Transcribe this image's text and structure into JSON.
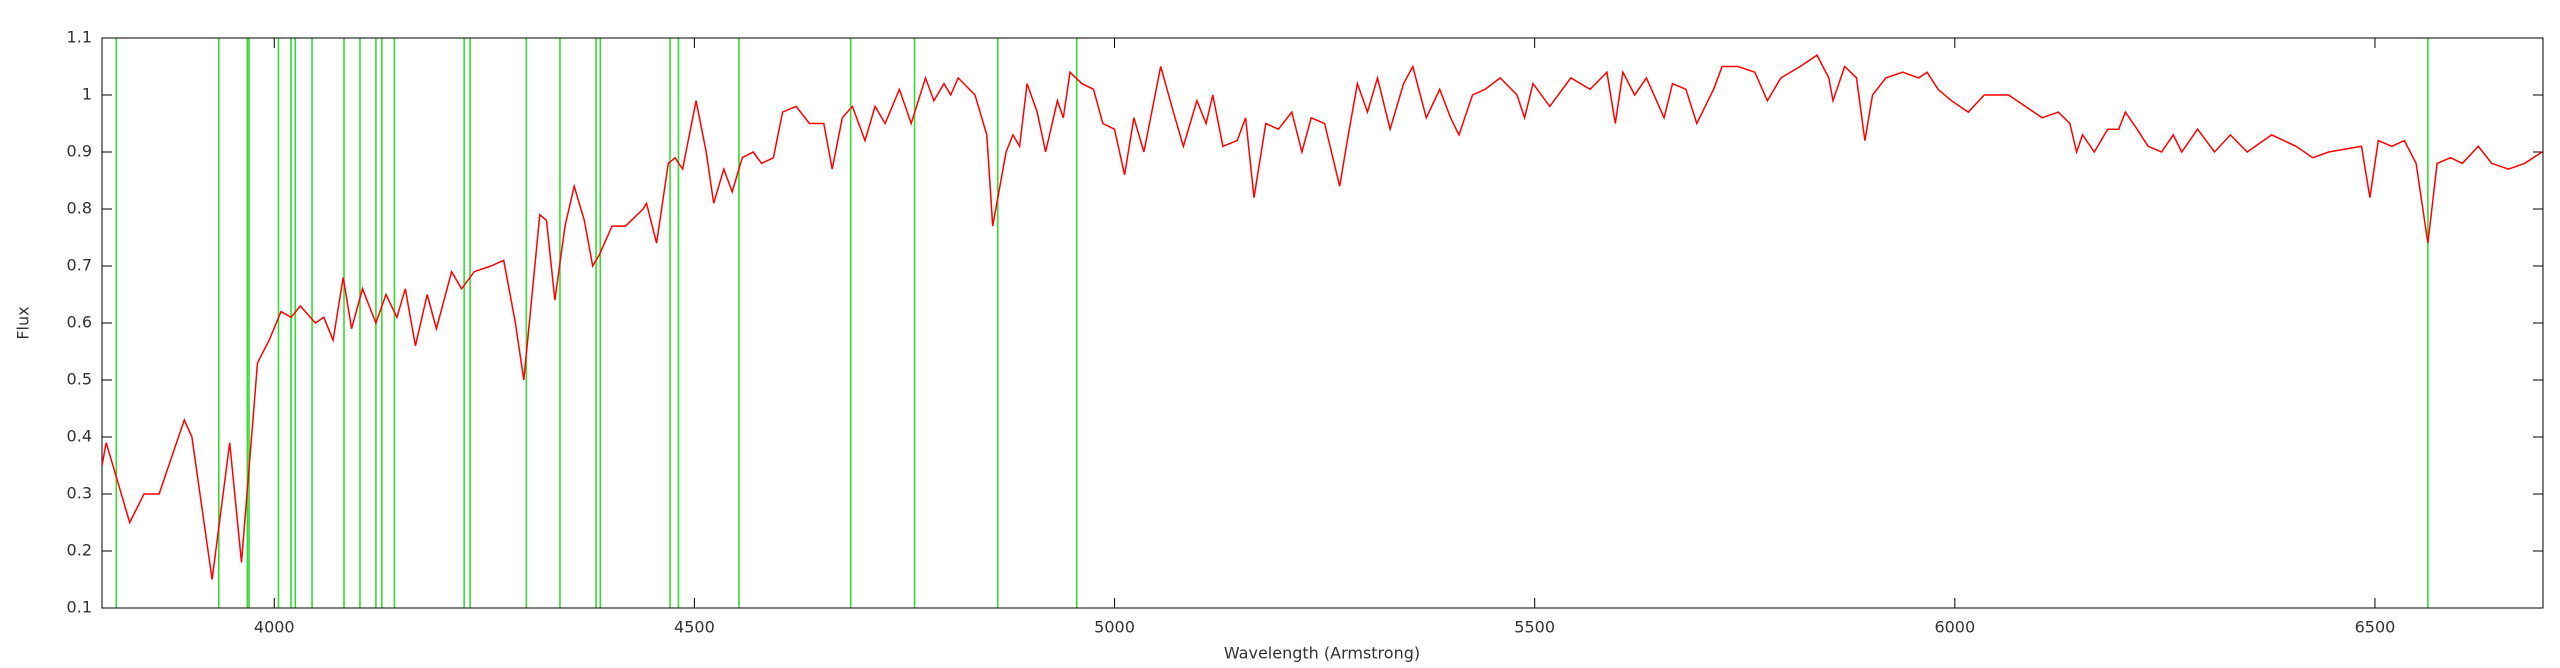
{
  "chart_data": {
    "type": "line",
    "xlabel": "Wavelength (Armstrong)",
    "ylabel": "Flux",
    "color": "#ff0000",
    "x": [
      3795,
      3800,
      3828,
      3845,
      3858,
      3863,
      3893,
      3902,
      3926,
      3947,
      3961,
      3980,
      3994,
      4008,
      4020,
      4031,
      4049,
      4059,
      4070,
      4082,
      4092,
      4105,
      4121,
      4133,
      4146,
      4156,
      4168,
      4182,
      4193,
      4211,
      4223,
      4238,
      4258,
      4273,
      4287,
      4297,
      4316,
      4324,
      4334,
      4346,
      4357,
      4369,
      4379,
      4387,
      4402,
      4418,
      4439,
      4443,
      4455,
      4469,
      4477,
      4486,
      4502,
      4514,
      4523,
      4535,
      4545,
      4557,
      4570,
      4580,
      4594,
      4605,
      4621,
      4637,
      4654,
      4664,
      4676,
      4688,
      4703,
      4715,
      4727,
      4744,
      4758,
      4775,
      4785,
      4797,
      4805,
      4814,
      4834,
      4848,
      4855,
      4871,
      4879,
      4887,
      4896,
      4908,
      4918,
      4932,
      4939,
      4947,
      4961,
      4975,
      4986,
      5000,
      5012,
      5023,
      5035,
      5055,
      5070,
      5082,
      5098,
      5109,
      5117,
      5129,
      5146,
      5156,
      5166,
      5180,
      5195,
      5211,
      5223,
      5234,
      5250,
      5268,
      5277,
      5289,
      5301,
      5313,
      5328,
      5344,
      5355,
      5371,
      5387,
      5400,
      5410,
      5426,
      5441,
      5459,
      5479,
      5488,
      5498,
      5518,
      5543,
      5566,
      5586,
      5596,
      5605,
      5619,
      5633,
      5654,
      5664,
      5680,
      5693,
      5713,
      5723,
      5742,
      5762,
      5777,
      5793,
      5816,
      5836,
      5850,
      5855,
      5869,
      5883,
      5893,
      5902,
      5918,
      5938,
      5957,
      5967,
      5980,
      5996,
      6016,
      6035,
      6064,
      6084,
      6104,
      6123,
      6137,
      6145,
      6152,
      6166,
      6182,
      6195,
      6203,
      6217,
      6230,
      6246,
      6260,
      6270,
      6289,
      6309,
      6328,
      6348,
      6377,
      6406,
      6426,
      6445,
      6484,
      6494,
      6504,
      6520,
      6535,
      6549,
      6563,
      6574,
      6590,
      6604,
      6623,
      6639,
      6659,
      6678,
      6699
    ],
    "values": [
      0.35,
      0.39,
      0.25,
      0.3,
      0.3,
      0.3,
      0.43,
      0.4,
      0.15,
      0.39,
      0.18,
      0.53,
      0.57,
      0.62,
      0.61,
      0.63,
      0.6,
      0.61,
      0.57,
      0.68,
      0.59,
      0.66,
      0.6,
      0.65,
      0.61,
      0.66,
      0.56,
      0.65,
      0.59,
      0.69,
      0.66,
      0.69,
      0.7,
      0.71,
      0.6,
      0.5,
      0.79,
      0.78,
      0.64,
      0.77,
      0.84,
      0.78,
      0.7,
      0.72,
      0.77,
      0.77,
      0.8,
      0.81,
      0.74,
      0.88,
      0.89,
      0.87,
      0.99,
      0.9,
      0.81,
      0.87,
      0.83,
      0.89,
      0.9,
      0.88,
      0.89,
      0.97,
      0.98,
      0.95,
      0.95,
      0.87,
      0.96,
      0.98,
      0.92,
      0.98,
      0.95,
      1.01,
      0.95,
      1.03,
      0.99,
      1.02,
      1.0,
      1.03,
      1.0,
      0.93,
      0.77,
      0.9,
      0.93,
      0.91,
      1.02,
      0.97,
      0.9,
      0.99,
      0.96,
      1.04,
      1.02,
      1.01,
      0.95,
      0.94,
      0.86,
      0.96,
      0.9,
      1.05,
      0.97,
      0.91,
      0.99,
      0.95,
      1.0,
      0.91,
      0.92,
      0.96,
      0.82,
      0.95,
      0.94,
      0.97,
      0.9,
      0.96,
      0.95,
      0.84,
      0.92,
      1.02,
      0.97,
      1.03,
      0.94,
      1.02,
      1.05,
      0.96,
      1.01,
      0.96,
      0.93,
      1.0,
      1.01,
      1.03,
      1.0,
      0.96,
      1.02,
      0.98,
      1.03,
      1.01,
      1.04,
      0.95,
      1.04,
      1.0,
      1.03,
      0.96,
      1.02,
      1.01,
      0.95,
      1.01,
      1.05,
      1.05,
      1.04,
      0.99,
      1.03,
      1.05,
      1.07,
      1.03,
      0.99,
      1.05,
      1.03,
      0.92,
      1.0,
      1.03,
      1.04,
      1.03,
      1.04,
      1.01,
      0.99,
      0.97,
      1.0,
      1.0,
      0.98,
      0.96,
      0.97,
      0.95,
      0.9,
      0.93,
      0.9,
      0.94,
      0.94,
      0.97,
      0.94,
      0.91,
      0.9,
      0.93,
      0.9,
      0.94,
      0.9,
      0.93,
      0.9,
      0.93,
      0.91,
      0.89,
      0.9,
      0.91,
      0.82,
      0.92,
      0.91,
      0.92,
      0.88,
      0.74,
      0.88,
      0.89,
      0.88,
      0.91,
      0.88,
      0.87,
      0.88,
      0.9
    ],
    "reference_lines": {
      "color": "#33dd33",
      "x": [
        3812,
        3934,
        3968,
        3970,
        4005,
        4020,
        4025,
        4045,
        4083,
        4102,
        4121,
        4128,
        4143,
        4226,
        4233,
        4300,
        4340,
        4383,
        4388,
        4471,
        4481,
        4553,
        4686,
        4762,
        4861,
        4955,
        6563
      ]
    },
    "xlim": [
      3795,
      6700
    ],
    "ylim": [
      0.1,
      1.1
    ],
    "xticks": [
      4000,
      4500,
      5000,
      5500,
      6000,
      6500
    ],
    "yticks": [
      0.1,
      0.2,
      0.3,
      0.4,
      0.5,
      0.6,
      0.7,
      0.8,
      0.9,
      1,
      1.1
    ]
  }
}
